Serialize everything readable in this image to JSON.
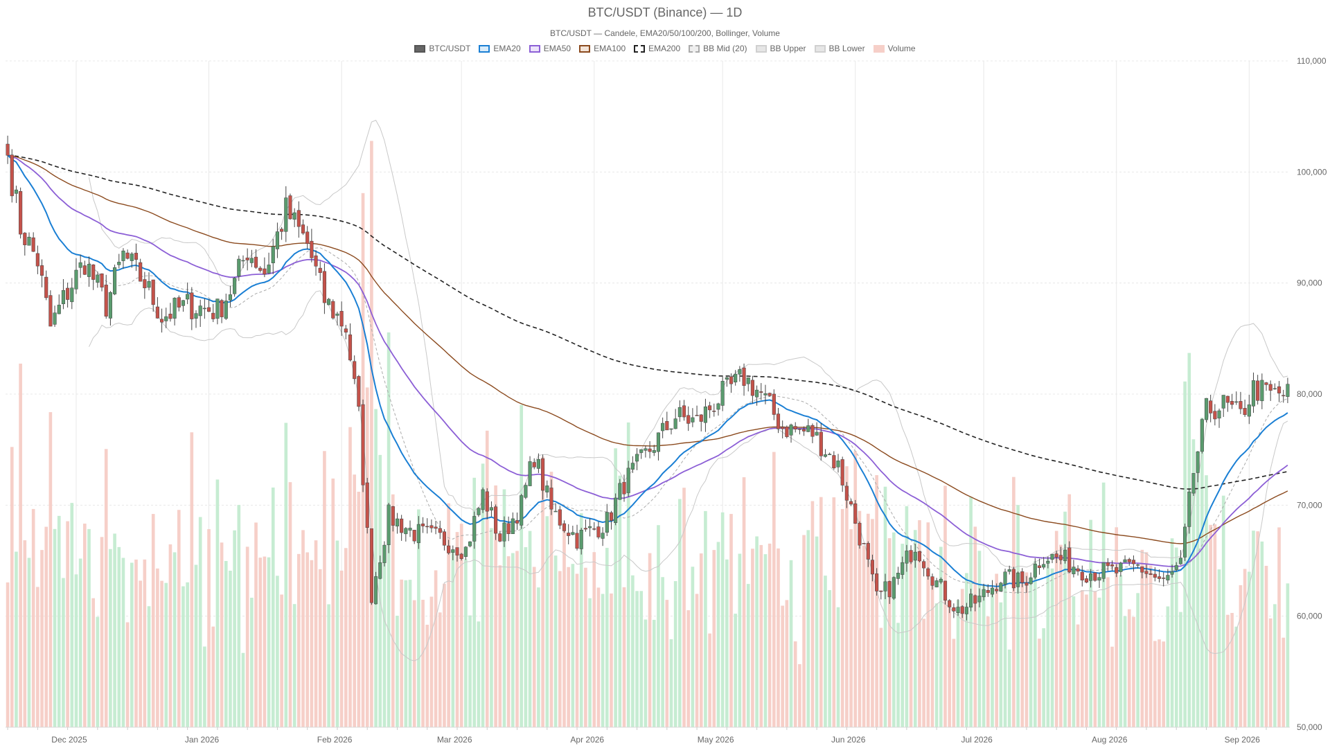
{
  "title": "BTC/USDT (Binance) — 1D",
  "subtitle": "BTC/USDT — Candele, EMA20/50/100/200, Bollinger, Volume",
  "legend": [
    {
      "label": "BTC/USDT",
      "fill": "#666666",
      "border": "#555555",
      "dash": false
    },
    {
      "label": "EMA20",
      "fill": "#d9ecfa",
      "border": "#1a7fd4",
      "dash": false
    },
    {
      "label": "EMA50",
      "fill": "#ece3fa",
      "border": "#8c5fd6",
      "dash": false
    },
    {
      "label": "EMA100",
      "fill": "#f3e4d8",
      "border": "#8b4a1e",
      "dash": false
    },
    {
      "label": "EMA200",
      "fill": "#ffffff",
      "border": "#222222",
      "dash": true
    },
    {
      "label": "BB Mid (20)",
      "fill": "#eeeeee",
      "border": "#aaaaaa",
      "dash": true
    },
    {
      "label": "BB Upper",
      "fill": "#e6e6e6",
      "border": "#d0d0d0",
      "dash": false
    },
    {
      "label": "BB Lower",
      "fill": "#e6e6e6",
      "border": "#d0d0d0",
      "dash": false
    },
    {
      "label": "Volume",
      "fill": "#f6cfc8",
      "border": "#f6cfc8",
      "dash": false
    }
  ],
  "colors": {
    "up": "#5a9b6e",
    "down": "#c4524a",
    "up_volume": "#c6ecd2",
    "down_volume": "#f6cfc8",
    "ema20": "#1a7fd4",
    "ema50": "#8c5fd6",
    "ema100": "#8b4a1e",
    "ema200": "#222222",
    "bb_mid": "#aaaaaa",
    "bb_band": "#c8c8c8",
    "grid": "#e8e8e8"
  },
  "chart_data": {
    "type": "candlestick",
    "y_axis": {
      "ticks": [
        "110,000",
        "100,000",
        "90,000",
        "80,000",
        "70,000",
        "60,000",
        "50,000"
      ],
      "tick_values": [
        110000,
        100000,
        90000,
        80000,
        70000,
        60000,
        50000
      ],
      "range": [
        50000,
        110000
      ],
      "position": "right"
    },
    "x_axis": {
      "range": [
        "2025-11-15",
        "2026-09-10"
      ],
      "ticks": [
        "Dec 2025",
        "Jan 2026",
        "Feb 2026",
        "Mar 2026",
        "Apr 2026",
        "May 2026",
        "Jun 2026",
        "Jul 2026",
        "Aug 2026",
        "Sep 2026"
      ],
      "tick_dates": [
        "2025-12-01",
        "2026-01-01",
        "2026-02-01",
        "2026-03-01",
        "2026-04-01",
        "2026-05-01",
        "2026-06-01",
        "2026-07-01",
        "2026-08-01",
        "2026-09-01"
      ]
    },
    "grid": true,
    "legend_position": "top-center",
    "close_anchors": [
      [
        "2025-11-15",
        101500
      ],
      [
        "2025-11-18",
        95000
      ],
      [
        "2025-11-22",
        92000
      ],
      [
        "2025-11-25",
        86000
      ],
      [
        "2025-11-28",
        88500
      ],
      [
        "2025-12-03",
        92000
      ],
      [
        "2025-12-08",
        88000
      ],
      [
        "2025-12-12",
        92500
      ],
      [
        "2025-12-17",
        90000
      ],
      [
        "2025-12-21",
        87000
      ],
      [
        "2025-12-27",
        88000
      ],
      [
        "2026-01-03",
        87500
      ],
      [
        "2026-01-07",
        90000
      ],
      [
        "2026-01-10",
        93000
      ],
      [
        "2026-01-14",
        91000
      ],
      [
        "2026-01-19",
        96500
      ],
      [
        "2026-01-24",
        93500
      ],
      [
        "2026-01-28",
        88500
      ],
      [
        "2026-02-02",
        86000
      ],
      [
        "2026-02-05",
        78000
      ],
      [
        "2026-02-08",
        62000
      ],
      [
        "2026-02-12",
        69000
      ],
      [
        "2026-02-18",
        67500
      ],
      [
        "2026-02-24",
        67000
      ],
      [
        "2026-03-02",
        66000
      ],
      [
        "2026-03-06",
        71000
      ],
      [
        "2026-03-10",
        67000
      ],
      [
        "2026-03-15",
        70000
      ],
      [
        "2026-03-18",
        74500
      ],
      [
        "2026-03-22",
        69500
      ],
      [
        "2026-03-28",
        67000
      ],
      [
        "2026-04-04",
        68500
      ],
      [
        "2026-04-08",
        72000
      ],
      [
        "2026-04-14",
        75000
      ],
      [
        "2026-04-20",
        78000
      ],
      [
        "2026-04-25",
        77500
      ],
      [
        "2026-05-01",
        80000
      ],
      [
        "2026-05-06",
        81500
      ],
      [
        "2026-05-10",
        80000
      ],
      [
        "2026-05-15",
        77000
      ],
      [
        "2026-05-22",
        76500
      ],
      [
        "2026-05-28",
        73500
      ],
      [
        "2026-06-03",
        66000
      ],
      [
        "2026-06-06",
        61500
      ],
      [
        "2026-06-10",
        63000
      ],
      [
        "2026-06-15",
        66500
      ],
      [
        "2026-06-20",
        63000
      ],
      [
        "2026-06-25",
        60500
      ],
      [
        "2026-06-30",
        61500
      ],
      [
        "2026-07-05",
        63500
      ],
      [
        "2026-07-10",
        63000
      ],
      [
        "2026-07-15",
        65500
      ],
      [
        "2026-07-20",
        65000
      ],
      [
        "2026-07-25",
        64000
      ],
      [
        "2026-08-01",
        64000
      ],
      [
        "2026-08-06",
        64500
      ],
      [
        "2026-08-12",
        63000
      ],
      [
        "2026-08-16",
        64500
      ],
      [
        "2026-08-19",
        73000
      ],
      [
        "2026-08-22",
        78500
      ],
      [
        "2026-08-26",
        79000
      ],
      [
        "2026-08-30",
        78000
      ],
      [
        "2026-09-02",
        80500
      ],
      [
        "2026-09-06",
        80000
      ]
    ]
  }
}
